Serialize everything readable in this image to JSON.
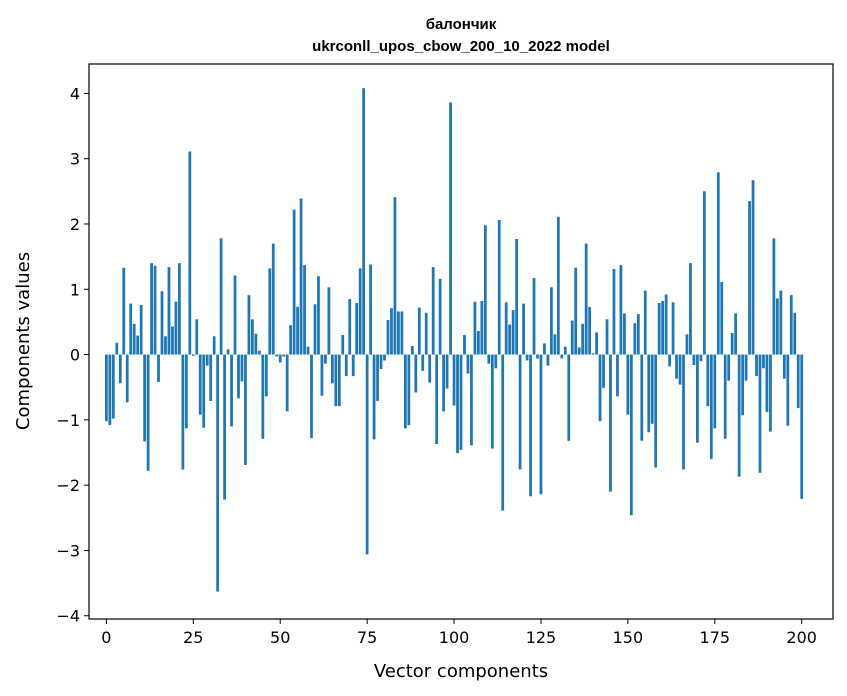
{
  "chart_data": {
    "type": "bar",
    "title": "балончик",
    "subtitle": "ukrconll_upos_cbow_200_10_2022 model",
    "xlabel": "Vector components",
    "ylabel": "Components values",
    "xlim": [
      -5,
      209
    ],
    "ylim": [
      -4.05,
      4.45
    ],
    "xticks": [
      0,
      25,
      50,
      75,
      100,
      125,
      150,
      175,
      200
    ],
    "yticks": [
      -4,
      -3,
      -2,
      -1,
      0,
      1,
      2,
      3,
      4
    ],
    "xtick_labels": [
      "0",
      "25",
      "50",
      "75",
      "100",
      "125",
      "150",
      "175",
      "200"
    ],
    "ytick_labels": [
      "−4",
      "−3",
      "−2",
      "−1",
      "0",
      "1",
      "2",
      "3",
      "4"
    ],
    "bar_color": "#1f77b4",
    "grid": false,
    "values": [
      -1.02,
      -1.08,
      -0.98,
      0.18,
      -0.44,
      1.33,
      -0.73,
      0.78,
      0.47,
      0.29,
      0.76,
      -1.33,
      -1.78,
      1.4,
      1.36,
      -0.42,
      0.97,
      0.28,
      1.34,
      0.43,
      0.81,
      1.4,
      -1.76,
      -1.13,
      3.11,
      -0.02,
      0.54,
      -0.92,
      -1.12,
      -0.17,
      -0.71,
      0.28,
      -3.63,
      1.78,
      -2.22,
      0.08,
      -1.1,
      1.21,
      -0.67,
      -0.41,
      -1.69,
      0.91,
      0.54,
      0.32,
      0.06,
      -1.29,
      -0.64,
      1.32,
      1.7,
      -0.03,
      -0.12,
      -0.03,
      -0.87,
      0.45,
      2.22,
      0.73,
      2.39,
      1.37,
      0.12,
      -1.28,
      0.77,
      1.2,
      -0.63,
      -0.14,
      1.03,
      -0.44,
      -0.79,
      -0.79,
      0.3,
      -0.33,
      0.85,
      -0.33,
      0.79,
      1.32,
      4.08,
      -3.06,
      1.38,
      -1.3,
      -0.71,
      -0.22,
      -0.09,
      0.53,
      0.71,
      2.41,
      0.66,
      0.66,
      -1.13,
      -1.08,
      0.13,
      -0.58,
      0.72,
      -0.25,
      0.64,
      -0.43,
      1.34,
      -1.37,
      1.16,
      -0.87,
      -0.52,
      3.86,
      -0.78,
      -1.51,
      -1.46,
      0.3,
      -0.29,
      -1.39,
      0.81,
      0.36,
      0.82,
      1.98,
      -0.14,
      -1.44,
      -0.21,
      2.06,
      -2.39,
      0.8,
      0.46,
      0.68,
      1.77,
      -1.76,
      0.78,
      -0.09,
      -2.17,
      1.17,
      -0.06,
      -2.14,
      0.17,
      -0.17,
      1.03,
      0.31,
      2.11,
      -0.06,
      0.12,
      -1.32,
      0.52,
      1.33,
      0.11,
      0.47,
      1.7,
      0.73,
      0.02,
      0.34,
      -1.02,
      -0.51,
      0.54,
      -2.1,
      1.31,
      -0.64,
      1.37,
      0.63,
      -0.92,
      -2.46,
      0.48,
      0.62,
      -1.32,
      0.98,
      -1.19,
      -1.06,
      -1.73,
      0.79,
      0.82,
      0.92,
      -0.18,
      0.8,
      -0.37,
      -0.46,
      -1.76,
      0.31,
      1.4,
      -0.16,
      -1.35,
      -0.1,
      2.5,
      -0.79,
      -1.6,
      -1.13,
      2.79,
      1.11,
      -1.29,
      -0.4,
      0.33,
      0.63,
      -1.87,
      -0.93,
      -0.4,
      2.35,
      2.67,
      -0.33,
      -1.81,
      -0.21,
      -0.88,
      -1.18,
      1.78,
      0.86,
      0.98,
      -0.37,
      -1.09,
      0.91,
      0.64,
      -0.82,
      -2.21
    ]
  }
}
